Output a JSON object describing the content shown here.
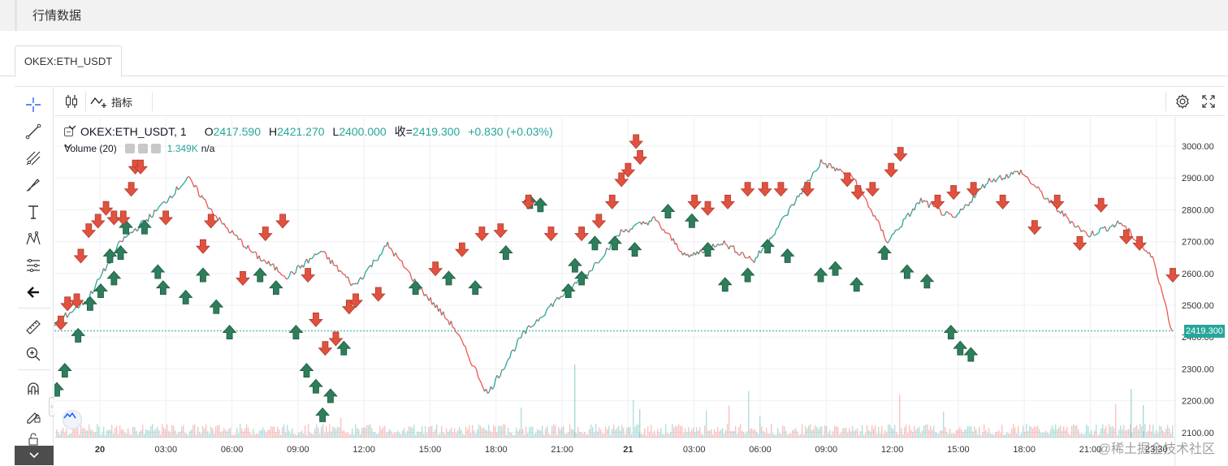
{
  "section": {
    "title": "行情数据"
  },
  "tabs": [
    {
      "label": "OKEX:ETH_USDT"
    }
  ],
  "top_toolbar": {
    "indicators_label": "指标"
  },
  "left_toolbar": [
    {
      "name": "crosshair-icon"
    },
    {
      "name": "trend-line-icon"
    },
    {
      "name": "pitchfork-icon"
    },
    {
      "name": "brush-icon"
    },
    {
      "name": "text-icon"
    },
    {
      "name": "pattern-icon"
    },
    {
      "name": "prediction-icon"
    },
    {
      "name": "back-arrow-icon"
    },
    {
      "name": "ruler-icon"
    },
    {
      "name": "zoom-in-icon"
    },
    {
      "name": "magnet-icon"
    },
    {
      "name": "stay-drawing-icon"
    },
    {
      "name": "lock-icon"
    }
  ],
  "legend": {
    "symbol": "OKEX:ETH_USDT, 1",
    "open_label": "O",
    "open": "2417.590",
    "high_label": "H",
    "high": "2421.270",
    "low_label": "L",
    "low": "2400.000",
    "close_label": "收=",
    "close": "2419.300",
    "change": "+0.830 (+0.03%)",
    "volume_title": "Volume (20)",
    "volume_value": "1.349K",
    "volume_na": "n/a"
  },
  "last_price_tag": "2419.300",
  "watermark": "@稀土掘金技术社区",
  "colors": {
    "up": "#2e7d5b",
    "down": "#e0523f",
    "accent": "#26a69a",
    "grid": "#eef0f4"
  },
  "chart_data": {
    "type": "line",
    "title": "",
    "series_name": "OKEX:ETH_USDT",
    "price_axis": [
      3000,
      2900,
      2800,
      2700,
      2600,
      2500,
      2400,
      2300,
      2200,
      2100
    ],
    "ylim": [
      2100,
      3000
    ],
    "time_axis": [
      "20",
      "03:00",
      "06:00",
      "09:00",
      "12:00",
      "15:00",
      "18:00",
      "21:00",
      "21",
      "03:00",
      "06:00",
      "09:00",
      "12:00",
      "15:00",
      "18:00",
      "21:00",
      "23:30"
    ],
    "x": [
      0,
      1.5,
      3,
      4.5,
      6,
      7.5,
      9,
      10.5,
      12,
      13.5,
      15,
      16.5,
      18,
      19.5,
      21,
      22.5,
      24,
      25.5,
      27,
      28.5,
      30,
      31.5,
      33,
      34.5,
      36,
      37.5,
      39,
      40.5,
      42,
      43.5,
      45,
      46.5,
      48,
      49.5,
      50.3
    ],
    "price": [
      2440,
      2520,
      2700,
      2790,
      2900,
      2760,
      2660,
      2590,
      2670,
      2560,
      2690,
      2550,
      2430,
      2220,
      2400,
      2510,
      2600,
      2730,
      2770,
      2650,
      2700,
      2640,
      2790,
      2950,
      2900,
      2700,
      2830,
      2770,
      2890,
      2920,
      2810,
      2720,
      2760,
      2640,
      2420
    ],
    "last_price": 2419.3,
    "buy_markers": [
      {
        "x": 0,
        "price": 2270
      },
      {
        "x": 0.6,
        "price": 2330
      },
      {
        "x": 1.6,
        "price": 2440
      },
      {
        "x": 2.5,
        "price": 2540
      },
      {
        "x": 3.3,
        "price": 2580
      },
      {
        "x": 4.0,
        "price": 2690
      },
      {
        "x": 4.3,
        "price": 2620
      },
      {
        "x": 4.8,
        "price": 2700
      },
      {
        "x": 5.2,
        "price": 2780
      },
      {
        "x": 6.6,
        "price": 2780
      },
      {
        "x": 7.6,
        "price": 2640
      },
      {
        "x": 8.0,
        "price": 2590
      },
      {
        "x": 9.7,
        "price": 2560
      },
      {
        "x": 11.0,
        "price": 2630
      },
      {
        "x": 12.0,
        "price": 2530
      },
      {
        "x": 13.0,
        "price": 2450
      },
      {
        "x": 15.3,
        "price": 2630
      },
      {
        "x": 16.5,
        "price": 2590
      },
      {
        "x": 18.0,
        "price": 2450
      },
      {
        "x": 18.8,
        "price": 2330
      },
      {
        "x": 19.5,
        "price": 2280
      },
      {
        "x": 20.0,
        "price": 2190
      },
      {
        "x": 20.6,
        "price": 2250
      },
      {
        "x": 21.6,
        "price": 2400
      },
      {
        "x": 27.0,
        "price": 2590
      },
      {
        "x": 29.5,
        "price": 2620
      },
      {
        "x": 31.5,
        "price": 2590
      },
      {
        "x": 33.8,
        "price": 2700
      },
      {
        "x": 35.6,
        "price": 2860
      },
      {
        "x": 36.4,
        "price": 2850
      },
      {
        "x": 38.5,
        "price": 2580
      },
      {
        "x": 39.0,
        "price": 2660
      },
      {
        "x": 39.5,
        "price": 2620
      },
      {
        "x": 40.5,
        "price": 2730
      },
      {
        "x": 42.0,
        "price": 2730
      },
      {
        "x": 43.5,
        "price": 2710
      },
      {
        "x": 46.0,
        "price": 2830
      },
      {
        "x": 47.8,
        "price": 2800
      },
      {
        "x": 49.0,
        "price": 2710
      },
      {
        "x": 50.3,
        "price": 2600
      },
      {
        "x": 52.0,
        "price": 2630
      },
      {
        "x": 53.5,
        "price": 2720
      },
      {
        "x": 55.0,
        "price": 2690
      },
      {
        "x": 57.5,
        "price": 2630
      },
      {
        "x": 58.6,
        "price": 2650
      },
      {
        "x": 60.2,
        "price": 2600
      },
      {
        "x": 62.3,
        "price": 2700
      },
      {
        "x": 64.0,
        "price": 2640
      },
      {
        "x": 65.5,
        "price": 2610
      },
      {
        "x": 67.3,
        "price": 2450
      },
      {
        "x": 68.0,
        "price": 2400
      },
      {
        "x": 68.8,
        "price": 2380
      }
    ],
    "sell_markers": [
      {
        "x": 0.3,
        "price": 2410
      },
      {
        "x": 0.8,
        "price": 2470
      },
      {
        "x": 1.5,
        "price": 2480
      },
      {
        "x": 1.8,
        "price": 2620
      },
      {
        "x": 2.4,
        "price": 2700
      },
      {
        "x": 3.1,
        "price": 2730
      },
      {
        "x": 3.7,
        "price": 2770
      },
      {
        "x": 4.3,
        "price": 2740
      },
      {
        "x": 5.0,
        "price": 2740
      },
      {
        "x": 5.6,
        "price": 2830
      },
      {
        "x": 5.9,
        "price": 2900
      },
      {
        "x": 6.3,
        "price": 2900
      },
      {
        "x": 8.2,
        "price": 2740
      },
      {
        "x": 11.0,
        "price": 2650
      },
      {
        "x": 11.6,
        "price": 2730
      },
      {
        "x": 14.0,
        "price": 2550
      },
      {
        "x": 15.7,
        "price": 2690
      },
      {
        "x": 17.0,
        "price": 2730
      },
      {
        "x": 18.9,
        "price": 2560
      },
      {
        "x": 19.5,
        "price": 2420
      },
      {
        "x": 20.2,
        "price": 2330
      },
      {
        "x": 21.0,
        "price": 2360
      },
      {
        "x": 22.0,
        "price": 2460
      },
      {
        "x": 22.5,
        "price": 2480
      },
      {
        "x": 24.2,
        "price": 2500
      },
      {
        "x": 28.5,
        "price": 2580
      },
      {
        "x": 30.5,
        "price": 2640
      },
      {
        "x": 32.0,
        "price": 2690
      },
      {
        "x": 33.4,
        "price": 2700
      },
      {
        "x": 35.5,
        "price": 2790
      },
      {
        "x": 37.2,
        "price": 2690
      },
      {
        "x": 39.5,
        "price": 2690
      },
      {
        "x": 40.8,
        "price": 2730
      },
      {
        "x": 41.8,
        "price": 2790
      },
      {
        "x": 42.5,
        "price": 2860
      },
      {
        "x": 43.0,
        "price": 2890
      },
      {
        "x": 43.6,
        "price": 2980
      },
      {
        "x": 43.9,
        "price": 2930
      },
      {
        "x": 48.0,
        "price": 2790
      },
      {
        "x": 49.0,
        "price": 2770
      },
      {
        "x": 50.5,
        "price": 2790
      },
      {
        "x": 52.0,
        "price": 2830
      },
      {
        "x": 53.3,
        "price": 2830
      },
      {
        "x": 54.5,
        "price": 2830
      },
      {
        "x": 56.5,
        "price": 2830
      },
      {
        "x": 59.5,
        "price": 2860
      },
      {
        "x": 60.3,
        "price": 2820
      },
      {
        "x": 61.4,
        "price": 2830
      },
      {
        "x": 62.8,
        "price": 2890
      },
      {
        "x": 63.5,
        "price": 2940
      },
      {
        "x": 66.3,
        "price": 2790
      },
      {
        "x": 67.5,
        "price": 2820
      },
      {
        "x": 69.0,
        "price": 2830
      },
      {
        "x": 71.2,
        "price": 2790
      },
      {
        "x": 73.6,
        "price": 2710
      },
      {
        "x": 75.3,
        "price": 2790
      },
      {
        "x": 77.0,
        "price": 2660
      },
      {
        "x": 78.6,
        "price": 2780
      },
      {
        "x": 80.5,
        "price": 2680
      },
      {
        "x": 81.5,
        "price": 2660
      },
      {
        "x": 84.0,
        "price": 2560
      }
    ]
  }
}
